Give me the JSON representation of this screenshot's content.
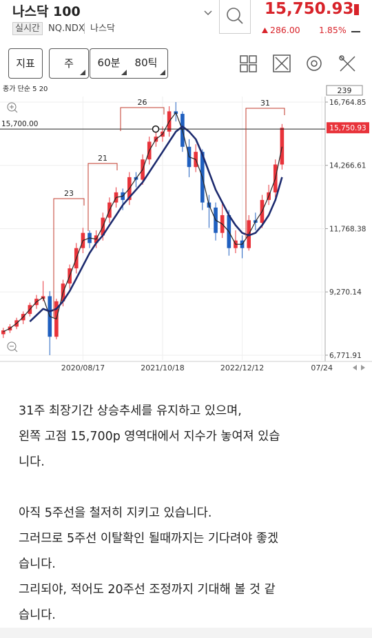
{
  "header": {
    "title": "나스닥 100",
    "price": "15,750.93",
    "tag": "실시간",
    "code": "NQ.NDX",
    "market": "나스닥",
    "change": "286.00",
    "change_pct": "1.85%"
  },
  "toolbar": {
    "buttons": [
      "지표",
      "주",
      "60분",
      "80틱"
    ]
  },
  "chart_data": {
    "type": "candlestick",
    "indicator_label": "종가 단순 5 20",
    "bar_count": 239,
    "categories": [
      null,
      null,
      null,
      null,
      null,
      null,
      null,
      null,
      null,
      null,
      null,
      null,
      "2020/08/17",
      null,
      null,
      null,
      null,
      null,
      null,
      null,
      null,
      null,
      null,
      null,
      "2021/10/18",
      null,
      null,
      null,
      null,
      null,
      null,
      null,
      null,
      null,
      null,
      null,
      "2022/12/12",
      null,
      null,
      null,
      null,
      null,
      null,
      null,
      null,
      null,
      null,
      null,
      "07/24"
    ],
    "open": [
      7600,
      7750,
      7900,
      8150,
      8400,
      8750,
      9000,
      9100,
      7500,
      8900,
      9600,
      10200,
      11000,
      11600,
      11200,
      11500,
      12200,
      12800,
      13200,
      12900,
      13800,
      13700,
      14500,
      15200,
      15400,
      15600,
      16400,
      16300,
      15000,
      14200,
      14800,
      12800,
      12600,
      11600,
      12300,
      11000,
      11300,
      11000,
      12100,
      12000,
      12900,
      13200,
      14300,
      null,
      null,
      null,
      null,
      null,
      null
    ],
    "high": [
      7850,
      8000,
      8250,
      8500,
      8850,
      9150,
      9700,
      9300,
      9000,
      9750,
      10350,
      11200,
      11800,
      11700,
      11700,
      12400,
      13000,
      13400,
      13350,
      14000,
      14000,
      14700,
      15400,
      15600,
      15800,
      16600,
      16764.85,
      16400,
      15300,
      15100,
      14900,
      13100,
      12800,
      12800,
      12500,
      11700,
      11500,
      12300,
      12400,
      13100,
      13500,
      14500,
      15900,
      null,
      null,
      null,
      null,
      null,
      null
    ],
    "low": [
      7450,
      7650,
      7800,
      8000,
      8300,
      8600,
      8900,
      6771.91,
      7400,
      8700,
      9400,
      10000,
      10800,
      11000,
      11000,
      11300,
      12000,
      12600,
      12500,
      12700,
      13400,
      13500,
      14300,
      15000,
      15200,
      15400,
      16000,
      14800,
      13800,
      14000,
      12500,
      11800,
      11300,
      11400,
      10700,
      10800,
      10600,
      10900,
      11700,
      11800,
      12700,
      13000,
      14100,
      null,
      null,
      null,
      null,
      null,
      null
    ],
    "close": [
      7750,
      7900,
      8150,
      8400,
      8750,
      9000,
      9100,
      7500,
      8900,
      9600,
      10200,
      11000,
      11600,
      11200,
      11500,
      12200,
      12800,
      13200,
      12900,
      13800,
      13700,
      14500,
      15200,
      15400,
      15600,
      16400,
      16300,
      15000,
      14200,
      14800,
      12800,
      12600,
      11600,
      12300,
      11000,
      11300,
      11000,
      12100,
      12000,
      12900,
      13200,
      14300,
      15750.93,
      null,
      null,
      null,
      null,
      null,
      null
    ],
    "up_color": "#e8333a",
    "down_color": "#1f5fbf",
    "lines": [
      {
        "color": "#222222",
        "width": 1.2,
        "values": [
          7700,
          7830,
          8030,
          8280,
          8580,
          8880,
          9050,
          8300,
          8200,
          9250,
          9900,
          10600,
          11300,
          11400,
          11350,
          11850,
          12500,
          13000,
          13050,
          13350,
          13750,
          14100,
          14850,
          15300,
          15500,
          16000,
          16350,
          15650,
          14600,
          14500,
          13800,
          12700,
          12100,
          11950,
          11650,
          11150,
          11150,
          11550,
          12050,
          12450,
          13050,
          13750,
          15000,
          null,
          null,
          null,
          null,
          null,
          null
        ]
      },
      {
        "color": "#1c2a6e",
        "width": 2.6,
        "values": [
          null,
          null,
          null,
          null,
          8100,
          8350,
          8600,
          8500,
          8600,
          8900,
          9300,
          9800,
          10300,
          10800,
          11200,
          11500,
          11900,
          12300,
          12700,
          13000,
          13300,
          13600,
          14000,
          14400,
          14800,
          15200,
          15600,
          15800,
          15600,
          15300,
          14700,
          14000,
          13300,
          12800,
          12300,
          11900,
          11600,
          11500,
          11600,
          11900,
          12300,
          12900,
          13800,
          null,
          null,
          null,
          null,
          null,
          null
        ]
      }
    ],
    "annotations": [
      23,
      21,
      26,
      31
    ],
    "hline": {
      "value": 15700,
      "label": "15,700.00"
    },
    "last_price": {
      "value": 15750.93,
      "label": "15,750.93"
    },
    "ylim": [
      6580,
      17255
    ],
    "yticks": [
      {
        "value": 6771.91,
        "label": "6,771.91"
      },
      {
        "value": 9270.14,
        "label": "9,270.14"
      },
      {
        "value": 11768.38,
        "label": "11,768.38"
      },
      {
        "value": 14266.61,
        "label": "14,266.61"
      },
      {
        "value": 16764.85,
        "label": "16,764.85"
      }
    ],
    "grid": true
  },
  "paragraphs": [
    [
      "31주 최장기간 상승추세를 유지하고 있으며,",
      "왼쪽 고점 15,700p 영역대에서 지수가 놓여져 있습",
      "니다."
    ],
    [
      "아직 5주선을 철저히 지키고 있습니다.",
      "그러므로 5주선 이탈확인 될때까지는 기다려야 좋겠",
      "습니다.",
      "그리되야, 적어도 20주선 조정까지 기대해 볼 것 같",
      "습니다."
    ]
  ]
}
